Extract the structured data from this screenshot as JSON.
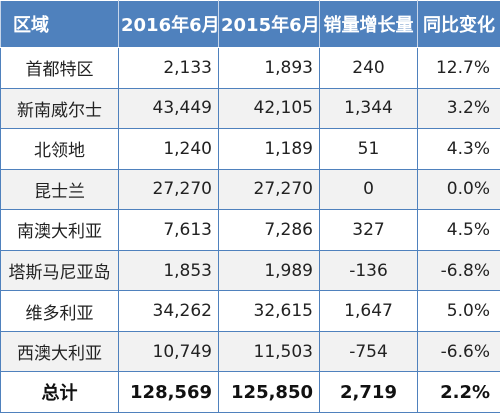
{
  "table": {
    "headers": {
      "region": "区域",
      "jun_2016": "2016年6月",
      "jun_2015": "2015年6月",
      "growth": "销量增长量",
      "yoy": "同比变化"
    },
    "rows": [
      {
        "region": "首都特区",
        "jun_2016": "2,133",
        "jun_2015": "1,893",
        "growth": "240",
        "yoy": "12.7%"
      },
      {
        "region": "新南威尔士",
        "jun_2016": "43,449",
        "jun_2015": "42,105",
        "growth": "1,344",
        "yoy": "3.2%"
      },
      {
        "region": "北领地",
        "jun_2016": "1,240",
        "jun_2015": "1,189",
        "growth": "51",
        "yoy": "4.3%"
      },
      {
        "region": "昆士兰",
        "jun_2016": "27,270",
        "jun_2015": "27,270",
        "growth": "0",
        "yoy": "0.0%"
      },
      {
        "region": "南澳大利亚",
        "jun_2016": "7,613",
        "jun_2015": "7,286",
        "growth": "327",
        "yoy": "4.5%"
      },
      {
        "region": "塔斯马尼亚岛",
        "jun_2016": "1,853",
        "jun_2015": "1,989",
        "growth": "-136",
        "yoy": "-6.8%"
      },
      {
        "region": "维多利亚",
        "jun_2016": "34,262",
        "jun_2015": "32,615",
        "growth": "1,647",
        "yoy": "5.0%"
      },
      {
        "region": "西澳大利亚",
        "jun_2016": "10,749",
        "jun_2015": "11,503",
        "growth": "-754",
        "yoy": "-6.6%"
      }
    ],
    "total": {
      "region": "总计",
      "jun_2016": "128,569",
      "jun_2015": "125,850",
      "growth": "2,719",
      "yoy": "2.2%"
    }
  },
  "colors": {
    "header_background": "#4f81bd",
    "header_text": "#ffffff",
    "border": "#4f81bd",
    "stripe": "#f2f2f2"
  }
}
